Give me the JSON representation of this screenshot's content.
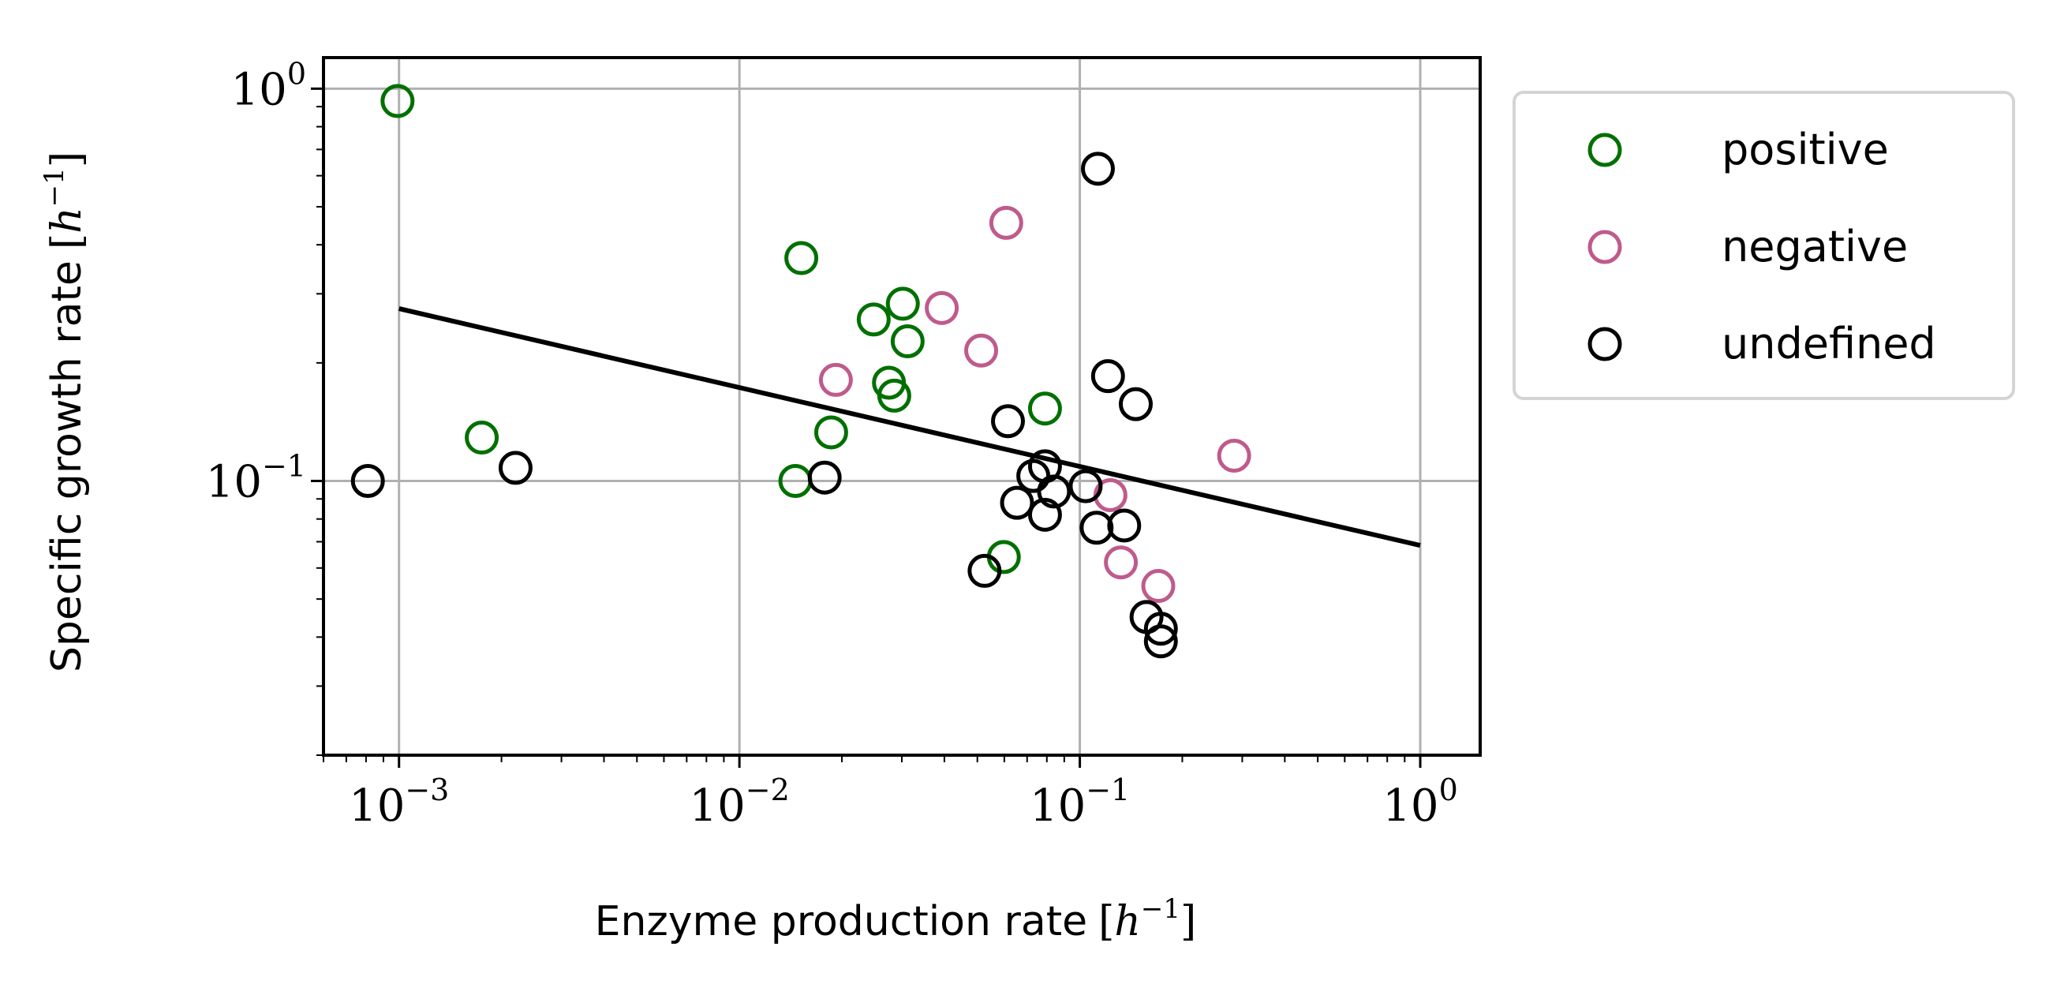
{
  "chart_data": {
    "type": "scatter",
    "x_scale": "log",
    "y_scale": "log",
    "xlim": [
      0.0006,
      1.5
    ],
    "ylim": [
      0.02,
      1.2
    ],
    "grid": true,
    "legend_placement": "outside-top-right",
    "xlabel": {
      "text": "Enzyme production rate",
      "unit_base": "h",
      "unit_exp": "−1"
    },
    "ylabel": {
      "text": "Specific growth rate",
      "unit_base": "h",
      "unit_exp": "−1"
    },
    "x_ticks": [
      {
        "value": 0.001,
        "base": "10",
        "exp": "−3"
      },
      {
        "value": 0.01,
        "base": "10",
        "exp": "−2"
      },
      {
        "value": 0.1,
        "base": "10",
        "exp": "−1"
      },
      {
        "value": 1,
        "base": "10",
        "exp": "0"
      }
    ],
    "y_ticks": [
      {
        "value": 0.1,
        "base": "10",
        "exp": "−1"
      },
      {
        "value": 1,
        "base": "10",
        "exp": "0"
      }
    ],
    "series": [
      {
        "name": "positive",
        "color": "#007000",
        "marker": "open-circle",
        "points": [
          [
            0.00099,
            0.93
          ],
          [
            0.0152,
            0.37
          ],
          [
            0.0248,
            0.258
          ],
          [
            0.0302,
            0.283
          ],
          [
            0.0312,
            0.227
          ],
          [
            0.0275,
            0.178
          ],
          [
            0.0285,
            0.165
          ],
          [
            0.0186,
            0.133
          ],
          [
            0.00175,
            0.129
          ],
          [
            0.0146,
            0.1
          ],
          [
            0.079,
            0.153
          ],
          [
            0.0598,
            0.064
          ]
        ]
      },
      {
        "name": "negative",
        "color": "#bf5b8c",
        "marker": "open-circle",
        "points": [
          [
            0.0608,
            0.455
          ],
          [
            0.0393,
            0.276
          ],
          [
            0.0513,
            0.215
          ],
          [
            0.0192,
            0.181
          ],
          [
            0.284,
            0.116
          ],
          [
            0.123,
            0.092
          ],
          [
            0.132,
            0.062
          ],
          [
            0.17,
            0.054
          ]
        ]
      },
      {
        "name": "undefined",
        "color": "#000000",
        "marker": "open-circle",
        "points": [
          [
            0.113,
            0.625
          ],
          [
            0.121,
            0.185
          ],
          [
            0.146,
            0.157
          ],
          [
            0.0615,
            0.142
          ],
          [
            0.079,
            0.109
          ],
          [
            0.073,
            0.103
          ],
          [
            0.104,
            0.097
          ],
          [
            0.084,
            0.094
          ],
          [
            0.0654,
            0.088
          ],
          [
            0.079,
            0.082
          ],
          [
            0.112,
            0.076
          ],
          [
            0.135,
            0.077
          ],
          [
            0.0525,
            0.059
          ],
          [
            0.157,
            0.045
          ],
          [
            0.173,
            0.042
          ],
          [
            0.173,
            0.039
          ],
          [
            0.0178,
            0.102
          ],
          [
            0.00081,
            0.1
          ],
          [
            0.0022,
            0.108
          ]
        ]
      }
    ],
    "fit_line": {
      "color": "#000000",
      "points": [
        [
          0.001,
          0.275
        ],
        [
          1,
          0.0685
        ]
      ]
    }
  }
}
